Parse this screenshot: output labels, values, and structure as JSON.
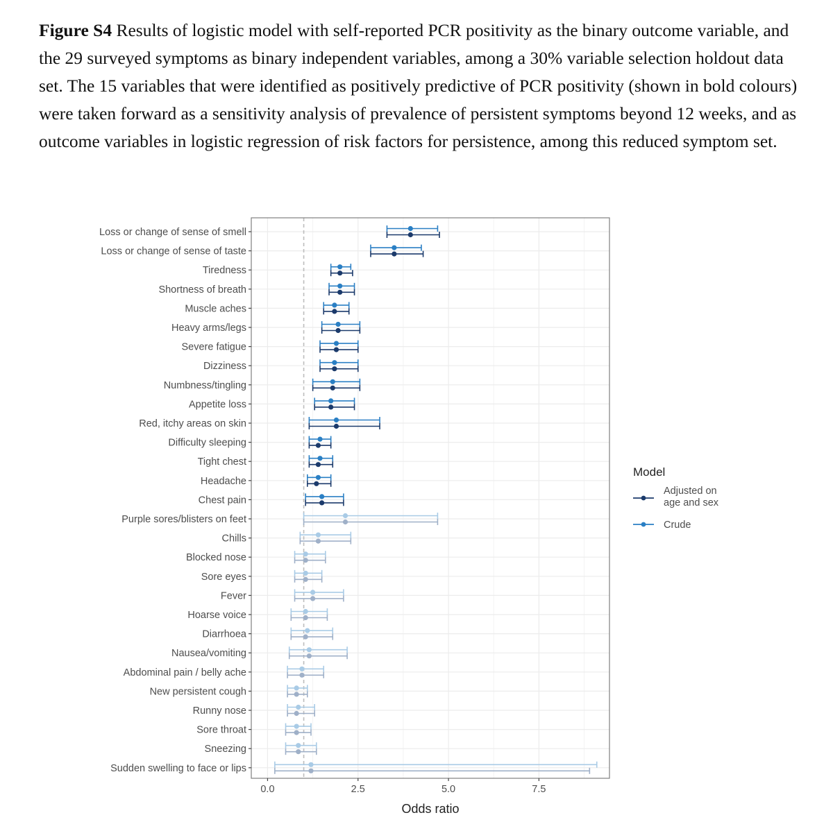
{
  "caption": {
    "label": "Figure S4",
    "text": "Results of logistic model with self-reported PCR positivity as the binary outcome variable, and the 29 surveyed symptoms as binary independent variables, among a 30% variable selection holdout data set. The 15 variables that were identified as positively predictive of PCR positivity (shown in bold colours) were taken forward as a sensitivity analysis of prevalence of persistent symptoms beyond 12 weeks, and as outcome variables in logistic regression of risk factors for persistence, among this reduced symptom set."
  },
  "colors": {
    "adjusted": "#1b3a6b",
    "crude": "#2a7fc4",
    "adjusted_faded": "#9fb0c8",
    "crude_faded": "#a9cbe6",
    "reference_line": "#bdbdbd",
    "grid": "#ececec",
    "panel_border": "#7f7f7f"
  },
  "chart_data": {
    "type": "forest",
    "xlabel": "Odds ratio",
    "xlim": [
      -0.45,
      9.45
    ],
    "xticks": [
      0.0,
      2.5,
      5.0,
      7.5
    ],
    "xtick_labels": [
      "0.0",
      "2.5",
      "5.0",
      "7.5"
    ],
    "reference_line": 1,
    "grid": true,
    "legend": {
      "title": "Model",
      "position": "right",
      "entries": [
        {
          "key": "adjusted",
          "label_lines": [
            "Adjusted on",
            "age and sex"
          ]
        },
        {
          "key": "crude",
          "label_lines": [
            "Crude"
          ]
        }
      ]
    },
    "symptoms": [
      {
        "name": "Loss or change of sense of smell",
        "highlighted": true,
        "crude": [
          3.95,
          3.3,
          4.7
        ],
        "adjusted": [
          3.95,
          3.3,
          4.75
        ]
      },
      {
        "name": "Loss or change of sense of taste",
        "highlighted": true,
        "crude": [
          3.5,
          2.85,
          4.25
        ],
        "adjusted": [
          3.5,
          2.85,
          4.3
        ]
      },
      {
        "name": "Tiredness",
        "highlighted": true,
        "crude": [
          2.0,
          1.75,
          2.3
        ],
        "adjusted": [
          2.0,
          1.75,
          2.35
        ]
      },
      {
        "name": "Shortness of breath",
        "highlighted": true,
        "crude": [
          2.0,
          1.7,
          2.4
        ],
        "adjusted": [
          2.0,
          1.7,
          2.4
        ]
      },
      {
        "name": "Muscle aches",
        "highlighted": true,
        "crude": [
          1.85,
          1.55,
          2.25
        ],
        "adjusted": [
          1.85,
          1.55,
          2.25
        ]
      },
      {
        "name": "Heavy arms/legs",
        "highlighted": true,
        "crude": [
          1.95,
          1.5,
          2.55
        ],
        "adjusted": [
          1.95,
          1.5,
          2.55
        ]
      },
      {
        "name": "Severe fatigue",
        "highlighted": true,
        "crude": [
          1.9,
          1.45,
          2.5
        ],
        "adjusted": [
          1.9,
          1.45,
          2.5
        ]
      },
      {
        "name": "Dizziness",
        "highlighted": true,
        "crude": [
          1.85,
          1.45,
          2.5
        ],
        "adjusted": [
          1.85,
          1.45,
          2.5
        ]
      },
      {
        "name": "Numbness/tingling",
        "highlighted": true,
        "crude": [
          1.8,
          1.25,
          2.55
        ],
        "adjusted": [
          1.8,
          1.25,
          2.55
        ]
      },
      {
        "name": "Appetite loss",
        "highlighted": true,
        "crude": [
          1.75,
          1.3,
          2.4
        ],
        "adjusted": [
          1.75,
          1.3,
          2.4
        ]
      },
      {
        "name": "Red, itchy areas on skin",
        "highlighted": true,
        "crude": [
          1.9,
          1.15,
          3.1
        ],
        "adjusted": [
          1.9,
          1.15,
          3.1
        ]
      },
      {
        "name": "Difficulty sleeping",
        "highlighted": true,
        "crude": [
          1.45,
          1.15,
          1.75
        ],
        "adjusted": [
          1.4,
          1.15,
          1.75
        ]
      },
      {
        "name": "Tight chest",
        "highlighted": true,
        "crude": [
          1.45,
          1.15,
          1.8
        ],
        "adjusted": [
          1.4,
          1.15,
          1.8
        ]
      },
      {
        "name": "Headache",
        "highlighted": true,
        "crude": [
          1.4,
          1.1,
          1.75
        ],
        "adjusted": [
          1.35,
          1.1,
          1.75
        ]
      },
      {
        "name": "Chest pain",
        "highlighted": true,
        "crude": [
          1.5,
          1.05,
          2.1
        ],
        "adjusted": [
          1.5,
          1.05,
          2.1
        ]
      },
      {
        "name": "Purple sores/blisters on feet",
        "highlighted": false,
        "crude": [
          2.15,
          1.0,
          4.7
        ],
        "adjusted": [
          2.15,
          1.0,
          4.7
        ]
      },
      {
        "name": "Chills",
        "highlighted": false,
        "crude": [
          1.4,
          0.9,
          2.3
        ],
        "adjusted": [
          1.4,
          0.9,
          2.3
        ]
      },
      {
        "name": "Blocked nose",
        "highlighted": false,
        "crude": [
          1.05,
          0.75,
          1.6
        ],
        "adjusted": [
          1.05,
          0.75,
          1.6
        ]
      },
      {
        "name": "Sore eyes",
        "highlighted": false,
        "crude": [
          1.05,
          0.75,
          1.5
        ],
        "adjusted": [
          1.05,
          0.75,
          1.5
        ]
      },
      {
        "name": "Fever",
        "highlighted": false,
        "crude": [
          1.25,
          0.75,
          2.1
        ],
        "adjusted": [
          1.25,
          0.75,
          2.1
        ]
      },
      {
        "name": "Hoarse voice",
        "highlighted": false,
        "crude": [
          1.05,
          0.65,
          1.65
        ],
        "adjusted": [
          1.05,
          0.65,
          1.65
        ]
      },
      {
        "name": "Diarrhoea",
        "highlighted": false,
        "crude": [
          1.1,
          0.65,
          1.8
        ],
        "adjusted": [
          1.05,
          0.65,
          1.8
        ]
      },
      {
        "name": "Nausea/vomiting",
        "highlighted": false,
        "crude": [
          1.15,
          0.6,
          2.2
        ],
        "adjusted": [
          1.15,
          0.6,
          2.2
        ]
      },
      {
        "name": "Abdominal pain / belly ache",
        "highlighted": false,
        "crude": [
          0.95,
          0.55,
          1.55
        ],
        "adjusted": [
          0.95,
          0.55,
          1.55
        ]
      },
      {
        "name": "New persistent cough",
        "highlighted": false,
        "crude": [
          0.8,
          0.55,
          1.1
        ],
        "adjusted": [
          0.8,
          0.55,
          1.1
        ]
      },
      {
        "name": "Runny nose",
        "highlighted": false,
        "crude": [
          0.85,
          0.55,
          1.3
        ],
        "adjusted": [
          0.8,
          0.55,
          1.3
        ]
      },
      {
        "name": "Sore throat",
        "highlighted": false,
        "crude": [
          0.8,
          0.5,
          1.2
        ],
        "adjusted": [
          0.8,
          0.5,
          1.2
        ]
      },
      {
        "name": "Sneezing",
        "highlighted": false,
        "crude": [
          0.85,
          0.5,
          1.35
        ],
        "adjusted": [
          0.85,
          0.5,
          1.35
        ]
      },
      {
        "name": "Sudden swelling to face or lips",
        "highlighted": false,
        "crude": [
          1.2,
          0.2,
          9.1
        ],
        "adjusted": [
          1.2,
          0.2,
          8.9
        ]
      }
    ]
  }
}
